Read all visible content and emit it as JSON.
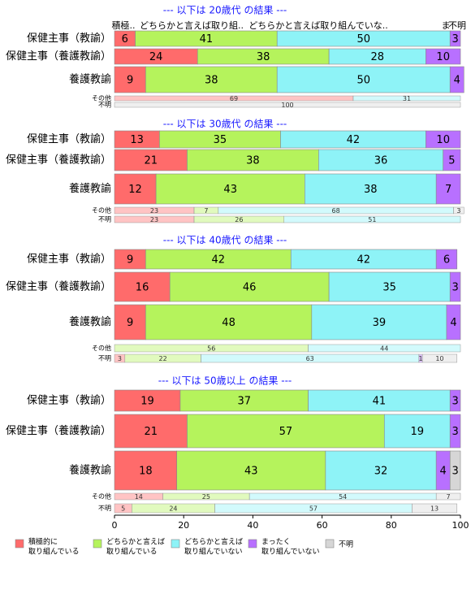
{
  "chart_data": {
    "type": "bar",
    "orientation": "horizontal",
    "stacked": true,
    "xlim": [
      0,
      100
    ],
    "x_ticks": [
      "0",
      "20",
      "40",
      "60",
      "80",
      "100"
    ],
    "top_labels": [
      "積極..",
      "どちらかと言えば取り組..",
      "どちらかと言えば取り組んでいな..",
      "ま",
      "不明"
    ],
    "series": [
      {
        "key": "s1",
        "name": "積極的に\n取り組んでいる",
        "color": "#ff6b6b"
      },
      {
        "key": "s2",
        "name": "どちらかと言えば\n取り組んでいる",
        "color": "#b5f35c"
      },
      {
        "key": "s3",
        "name": "どちらかと言えば\n取り組んでいない",
        "color": "#8ef3f7"
      },
      {
        "key": "s4",
        "name": "まったく\n取り組んでいない",
        "color": "#b870ff"
      },
      {
        "key": "s5",
        "name": "不明",
        "color": "#d6d6d6"
      }
    ],
    "panels": [
      {
        "title": "--- 以下は 20歳代 の結果 ---",
        "bars": [
          {
            "label": "保健主事（教諭）",
            "values": [
              6,
              41,
              50,
              3,
              0
            ]
          },
          {
            "label": "保健主事（養護教諭）",
            "values": [
              24,
              38,
              28,
              10,
              0
            ]
          },
          {
            "label": "養護教諭",
            "values": [
              9,
              38,
              50,
              4,
              0
            ]
          }
        ],
        "small_bars": [
          {
            "label": "その他",
            "values": [
              69,
              0,
              31,
              0,
              0
            ]
          },
          {
            "label": "不明",
            "values": [
              0,
              0,
              0,
              0,
              100
            ]
          }
        ]
      },
      {
        "title": "--- 以下は 30歳代 の結果 ---",
        "bars": [
          {
            "label": "保健主事（教諭）",
            "values": [
              13,
              35,
              42,
              10,
              0
            ]
          },
          {
            "label": "保健主事（養護教諭）",
            "values": [
              21,
              38,
              36,
              5,
              0
            ]
          },
          {
            "label": "養護教諭",
            "values": [
              12,
              43,
              38,
              7,
              0
            ]
          }
        ],
        "small_bars": [
          {
            "label": "その他",
            "values": [
              23,
              7,
              68,
              0,
              3
            ]
          },
          {
            "label": "不明",
            "values": [
              23,
              26,
              51,
              0,
              0
            ]
          }
        ]
      },
      {
        "title": "--- 以下は 40歳代 の結果 ---",
        "bars": [
          {
            "label": "保健主事（教諭）",
            "values": [
              9,
              42,
              42,
              6,
              0
            ]
          },
          {
            "label": "保健主事（養護教諭）",
            "values": [
              16,
              46,
              35,
              3,
              0
            ]
          },
          {
            "label": "養護教諭",
            "values": [
              9,
              48,
              39,
              4,
              0
            ]
          }
        ],
        "small_bars": [
          {
            "label": "その他",
            "values": [
              0,
              56,
              44,
              0,
              0
            ]
          },
          {
            "label": "不明",
            "values": [
              3,
              22,
              63,
              1,
              10
            ]
          }
        ]
      },
      {
        "title": "--- 以下は 50歳以上 の結果 ---",
        "bars": [
          {
            "label": "保健主事（教諭）",
            "values": [
              19,
              37,
              41,
              3,
              0
            ]
          },
          {
            "label": "保健主事（養護教諭）",
            "values": [
              21,
              57,
              19,
              3,
              0
            ]
          },
          {
            "label": "養護教諭",
            "values": [
              18,
              43,
              32,
              4,
              3
            ]
          }
        ],
        "small_bars": [
          {
            "label": "その他",
            "values": [
              14,
              25,
              54,
              0,
              7
            ]
          },
          {
            "label": "不明",
            "values": [
              5,
              24,
              57,
              0,
              13
            ]
          }
        ]
      }
    ]
  }
}
